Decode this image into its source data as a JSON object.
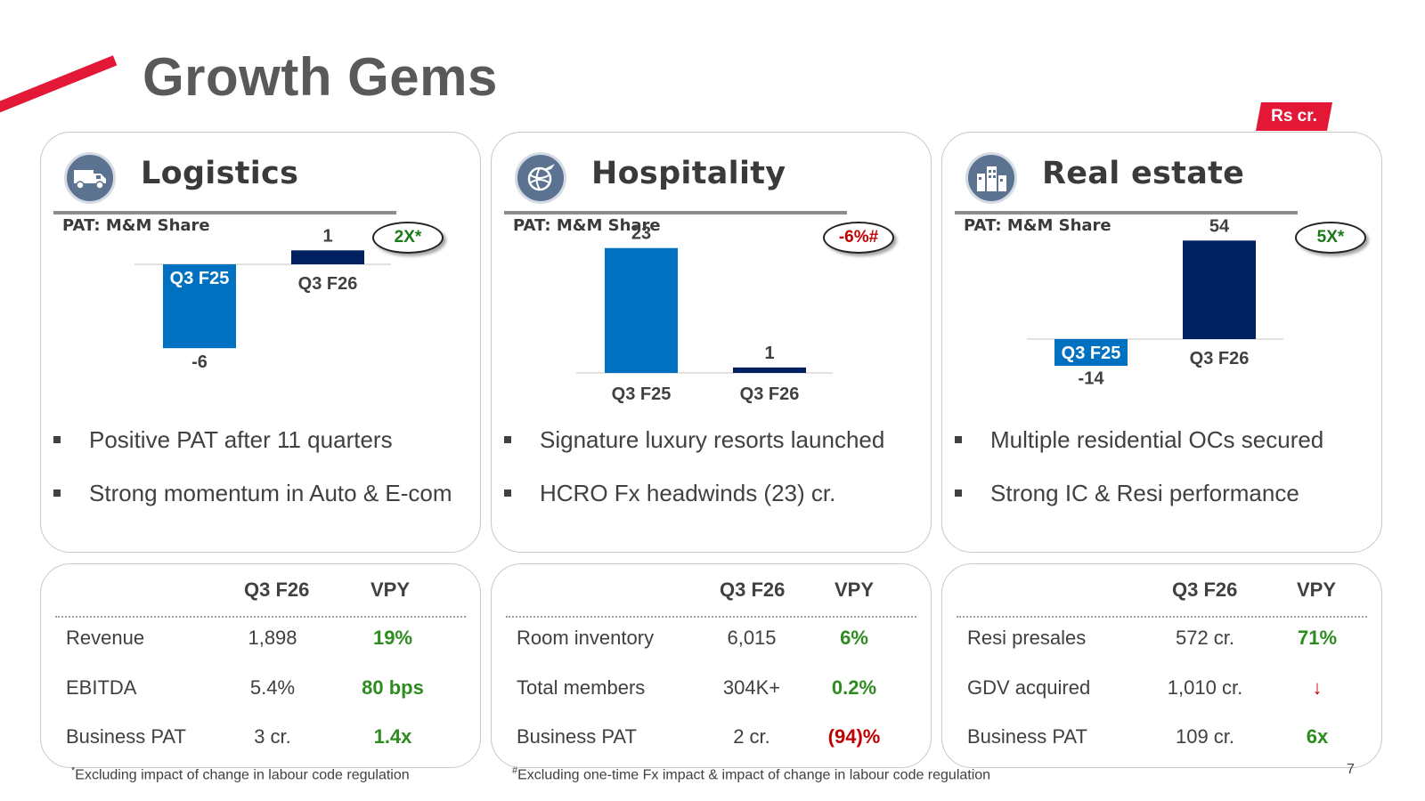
{
  "title": "Growth Gems",
  "unit_tag": "Rs cr.",
  "sections": [
    {
      "name": "Logistics",
      "icon": "truck-icon",
      "chart_label": "PAT: M&M Share",
      "badge": "2X*",
      "badge_color": "#1a7a1a",
      "bullets": [
        "Positive PAT after 11 quarters",
        "Strong momentum in Auto & E-com"
      ],
      "kpi_headers": [
        "Q3 F26",
        "VPY"
      ],
      "kpis": [
        {
          "label": "Revenue",
          "value": "1,898",
          "vpy": "19%",
          "trend": "pos"
        },
        {
          "label": "EBITDA",
          "value": "5.4%",
          "vpy": "80 bps",
          "trend": "pos"
        },
        {
          "label": "Business PAT",
          "value": "3 cr.",
          "vpy": "1.4x",
          "trend": "pos"
        }
      ]
    },
    {
      "name": "Hospitality",
      "icon": "globe-plane-icon",
      "chart_label": "PAT: M&M Share",
      "badge": "-6%#",
      "badge_color": "#c00000",
      "bullets": [
        "Signature luxury resorts launched",
        "HCRO Fx headwinds (23) cr."
      ],
      "kpi_headers": [
        "Q3 F26",
        "VPY"
      ],
      "kpis": [
        {
          "label": "Room inventory",
          "value": "6,015",
          "vpy": "6%",
          "trend": "pos"
        },
        {
          "label": "Total members",
          "value": "304K+",
          "vpy": "0.2%",
          "trend": "pos"
        },
        {
          "label": "Business PAT",
          "value": "2 cr.",
          "vpy": "(94)%",
          "trend": "neg"
        }
      ]
    },
    {
      "name": "Real estate",
      "icon": "buildings-icon",
      "chart_label": "PAT: M&M Share",
      "badge": "5X*",
      "badge_color": "#1a7a1a",
      "bullets": [
        "Multiple residential OCs secured",
        "Strong IC & Resi performance"
      ],
      "kpi_headers": [
        "Q3 F26",
        "VPY"
      ],
      "kpis": [
        {
          "label": "Resi presales",
          "value": "572 cr.",
          "vpy": "71%",
          "trend": "pos"
        },
        {
          "label": "GDV acquired",
          "value": "1,010 cr.",
          "vpy": "↓",
          "trend": "neg"
        },
        {
          "label": "Business PAT",
          "value": "109 cr.",
          "vpy": "6x",
          "trend": "pos"
        }
      ]
    }
  ],
  "chart_data": [
    {
      "type": "bar",
      "title": "PAT: M&M Share",
      "categories": [
        "Q3 F25",
        "Q3 F26"
      ],
      "values": [
        -6,
        1
      ],
      "colors": [
        "#0070c0",
        "#002060"
      ]
    },
    {
      "type": "bar",
      "title": "PAT: M&M Share",
      "categories": [
        "Q3 F25",
        "Q3 F26"
      ],
      "values": [
        23,
        1
      ],
      "colors": [
        "#0070c0",
        "#002060"
      ]
    },
    {
      "type": "bar",
      "title": "PAT: M&M Share",
      "categories": [
        "Q3 F25",
        "Q3 F26"
      ],
      "values": [
        -14,
        54
      ],
      "colors": [
        "#0070c0",
        "#002060"
      ]
    }
  ],
  "footnotes": {
    "left_mark": "*",
    "left": "Excluding impact of change in labour code regulation",
    "right_mark": "#",
    "right": "Excluding one-time Fx impact & impact of change in labour code regulation"
  },
  "page_number": "7"
}
